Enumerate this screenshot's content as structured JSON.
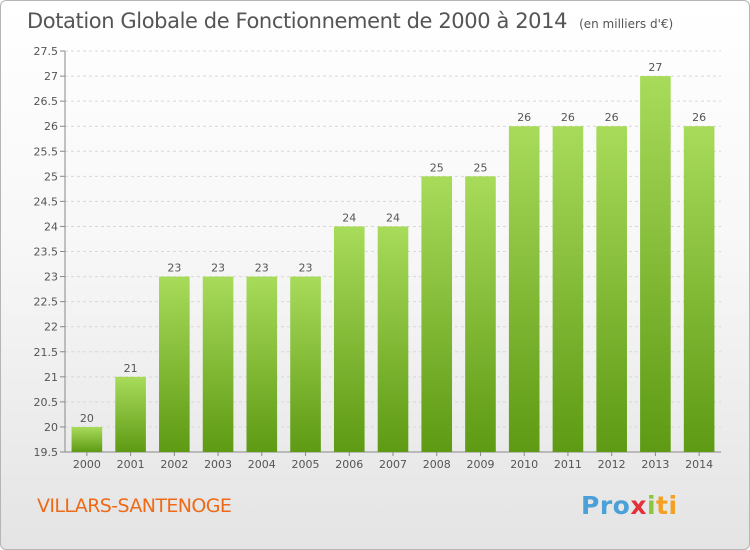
{
  "title": "Dotation Globale de Fonctionnement de 2000 à 2014",
  "unit_label": "(en milliers d'€)",
  "commune": "VILLARS-SANTENOGE",
  "logo_text": "Proxiti",
  "colors": {
    "bar_light": "#a8db5a",
    "bar_dark": "#5e9a14",
    "grid": "#d8d8d8",
    "axis": "#555555",
    "title": "#555555",
    "commune": "#ee6a17"
  },
  "chart_data": {
    "type": "bar",
    "title": "Dotation Globale de Fonctionnement de 2000 à 2014",
    "xlabel": "",
    "ylabel": "",
    "categories": [
      "2000",
      "2001",
      "2002",
      "2003",
      "2004",
      "2005",
      "2006",
      "2007",
      "2008",
      "2009",
      "2010",
      "2011",
      "2012",
      "2013",
      "2014"
    ],
    "values": [
      20,
      21,
      23,
      23,
      23,
      23,
      24,
      24,
      25,
      25,
      26,
      26,
      26,
      27,
      26
    ],
    "data_labels": [
      "20",
      "21",
      "23",
      "23",
      "23",
      "23",
      "24",
      "24",
      "25",
      "25",
      "26",
      "26",
      "26",
      "27",
      "26"
    ],
    "ylim": [
      19.5,
      27.5
    ],
    "yticks": [
      19.5,
      20,
      20.5,
      21,
      21.5,
      22,
      22.5,
      23,
      23.5,
      24,
      24.5,
      25,
      25.5,
      26,
      26.5,
      27,
      27.5
    ],
    "ytick_labels": [
      "19.5",
      "20",
      "20.5",
      "21",
      "21.5",
      "22",
      "22.5",
      "23",
      "23.5",
      "24",
      "24.5",
      "25",
      "25.5",
      "26",
      "26.5",
      "27",
      "27.5"
    ],
    "grid": true,
    "legend": "none"
  }
}
